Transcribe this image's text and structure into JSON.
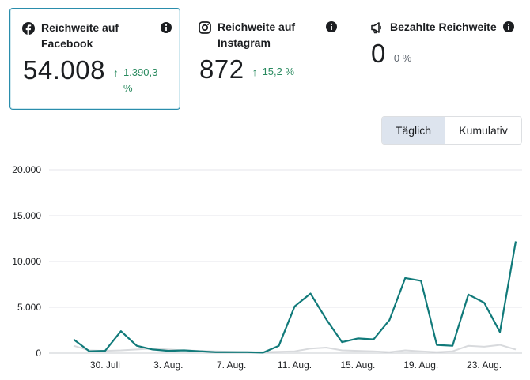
{
  "cards": {
    "facebook": {
      "title": "Reichweite auf Facebook",
      "value": "54.008",
      "change": "1.390,3 %",
      "icon": "facebook-icon"
    },
    "instagram": {
      "title": "Reichweite auf Instagram",
      "value": "872",
      "change": "15,2 %",
      "icon": "instagram-icon"
    },
    "paid": {
      "title": "Bezahlte Reichweite",
      "value": "0",
      "change": "0 %",
      "icon": "megaphone-icon"
    }
  },
  "toggle": {
    "daily": "Täglich",
    "cumulative": "Kumulativ"
  },
  "colors": {
    "accent": "#2a8dac",
    "line_primary": "#117a7a",
    "line_secondary": "#d8dadd",
    "positive": "#2a8a5f"
  },
  "chart_data": {
    "type": "line",
    "ylim": [
      0,
      20000
    ],
    "yticks": [
      0,
      5000,
      10000,
      15000,
      20000
    ],
    "ytick_labels": [
      "0",
      "5.000",
      "10.000",
      "15.000",
      "20.000"
    ],
    "xtick_labels": [
      "30. Juli",
      "3. Aug.",
      "7. Aug.",
      "11. Aug.",
      "15. Aug.",
      "19. Aug.",
      "23. Aug."
    ],
    "xtick_index": [
      2,
      6,
      10,
      14,
      18,
      22,
      26
    ],
    "series": [
      {
        "name": "Facebook",
        "values": [
          1500,
          200,
          250,
          2400,
          800,
          400,
          250,
          300,
          200,
          100,
          100,
          100,
          50,
          800,
          5100,
          6500,
          3700,
          1200,
          1600,
          1500,
          3600,
          8200,
          7900,
          900,
          800,
          6400,
          5500,
          2300,
          12200
        ]
      },
      {
        "name": "Bezahlt",
        "values": [
          800,
          300,
          250,
          300,
          400,
          500,
          400,
          300,
          250,
          200,
          150,
          100,
          100,
          150,
          200,
          500,
          600,
          300,
          250,
          200,
          100,
          300,
          200,
          100,
          200,
          800,
          700,
          900,
          400
        ]
      }
    ]
  }
}
